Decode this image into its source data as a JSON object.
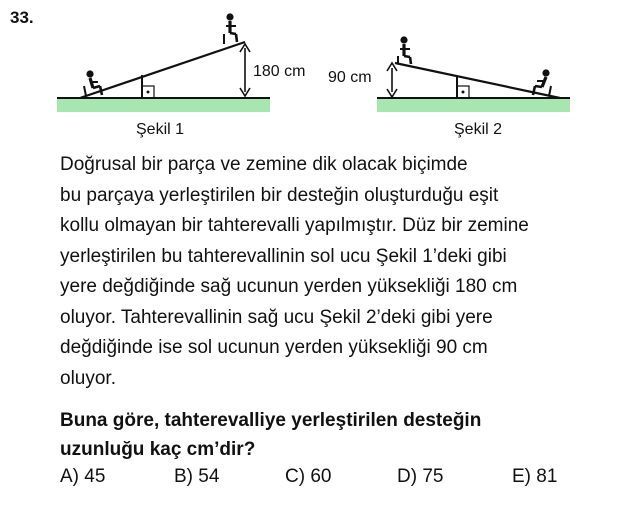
{
  "question": {
    "number": "33.",
    "figure1": {
      "caption": "Şekil 1",
      "height_label": "180 cm"
    },
    "figure2": {
      "caption": "Şekil 2",
      "height_label": "90 cm"
    },
    "text_lines": [
      "Doğrusal bir parça ve zemine dik olacak biçimde",
      "bu parçaya yerleştirilen bir desteğin oluşturduğu eşit",
      "kollu olmayan bir tahterevalli yapılmıştır. Düz bir zemine",
      "yerleştirilen bu tahterevallinin sol ucu Şekil 1’deki gibi",
      "yere değdiğinde sağ ucunun yerden yüksekliği 180 cm",
      "oluyor. Tahterevallinin sağ ucu Şekil 2’deki gibi yere",
      "değdiğinde ise sol ucunun yerden yüksekliği 90 cm",
      "oluyor."
    ],
    "prompt_lines": [
      "Buna göre, tahterevalliye yerleştirilen desteğin",
      "uzunluğu kaç cm’dir?"
    ],
    "choices": [
      "A) 45",
      "B) 54",
      "C) 60",
      "D) 75",
      "E) 81"
    ]
  },
  "colors": {
    "ground": "#a8e6b0",
    "ink": "#111111"
  }
}
